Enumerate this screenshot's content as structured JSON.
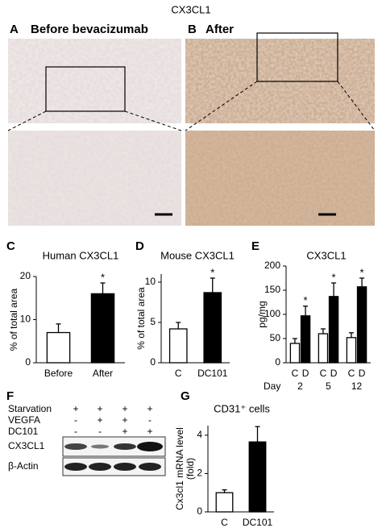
{
  "figure_title": "CX3CL1",
  "panels": [
    {
      "letter": "A",
      "caption": "Before bevacizumab"
    },
    {
      "letter": "B",
      "caption": "After"
    },
    {
      "letter": "C"
    },
    {
      "letter": "D"
    },
    {
      "letter": "E"
    },
    {
      "letter": "F"
    },
    {
      "letter": "G"
    }
  ],
  "blot": {
    "conditions": [
      {
        "name": "Starvation",
        "signs": [
          "+",
          "+",
          "+",
          "+"
        ]
      },
      {
        "name": "VEGFA",
        "signs": [
          "-",
          "+",
          "+",
          "-"
        ]
      },
      {
        "name": "DC101",
        "signs": [
          "-",
          "-",
          "+",
          "+"
        ]
      }
    ],
    "bands": [
      "CX3CL1",
      "β-Actin"
    ]
  },
  "chart_data": [
    {
      "type": "bar",
      "title": "Human CX3CL1",
      "y_label": [
        "% of total area"
      ],
      "categories": [
        "Before",
        "After"
      ],
      "values": [
        7,
        16
      ],
      "errors": [
        2,
        2.5
      ],
      "colors": [
        "#ffffff",
        "#000000"
      ],
      "annotations": [
        null,
        "*"
      ],
      "ylim": [
        0,
        20
      ],
      "yticks": [
        0,
        10,
        20
      ]
    },
    {
      "type": "bar",
      "title": "Mouse CX3CL1",
      "y_label": [
        "% of total area"
      ],
      "categories": [
        "C",
        "DC101"
      ],
      "values": [
        4.2,
        8.7
      ],
      "errors": [
        0.8,
        1.8
      ],
      "colors": [
        "#ffffff",
        "#000000"
      ],
      "annotations": [
        null,
        "*"
      ],
      "ylim": [
        0,
        11
      ],
      "yticks": [
        0,
        5,
        10
      ]
    },
    {
      "type": "bar",
      "title": "CX3CL1",
      "y_label": [
        "pg/mg"
      ],
      "x_label": "Day",
      "categories": [
        "2",
        "5",
        "12"
      ],
      "series": [
        {
          "name": "C",
          "color": "#ffffff",
          "values": [
            40,
            60,
            52
          ],
          "errors": [
            10,
            10,
            10
          ],
          "annotations": [
            null,
            null,
            null
          ]
        },
        {
          "name": "D",
          "color": "#000000",
          "values": [
            97,
            137,
            157
          ],
          "errors": [
            20,
            28,
            18
          ],
          "annotations": [
            "*",
            "*",
            "*"
          ]
        }
      ],
      "ylim": [
        0,
        200
      ],
      "yticks": [
        0,
        50,
        100,
        150,
        200
      ]
    },
    {
      "type": "bar",
      "title": "CD31⁺ cells",
      "y_label": [
        "Cx3cl1 mRNA level",
        "(fold)"
      ],
      "categories": [
        "C",
        "DC101"
      ],
      "values": [
        1,
        3.65
      ],
      "errors": [
        0.15,
        0.8
      ],
      "colors": [
        "#ffffff",
        "#000000"
      ],
      "annotations": [
        null,
        null
      ],
      "ylim": [
        0,
        4.5
      ],
      "yticks": [
        0,
        2,
        4
      ]
    }
  ]
}
